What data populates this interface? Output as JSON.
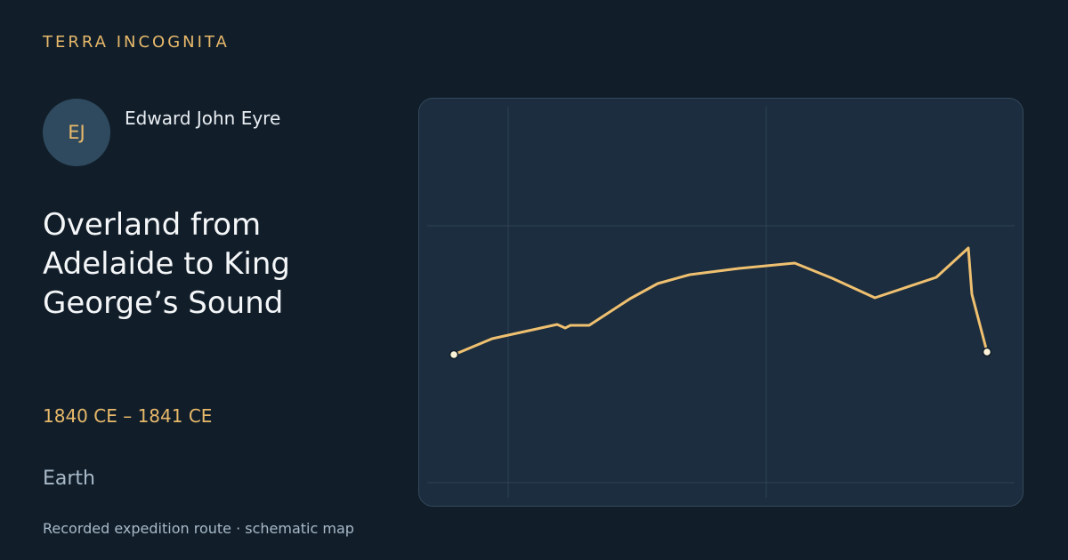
{
  "brand": "TERRA INCOGNITA",
  "explorer": {
    "initials": "EJ",
    "name": "Edward John Eyre"
  },
  "title": "Overland from Adelaide to King George’s Sound",
  "dates": "1840 CE – 1841 CE",
  "place": "Earth",
  "footer": "Recorded expedition route · schematic map"
}
